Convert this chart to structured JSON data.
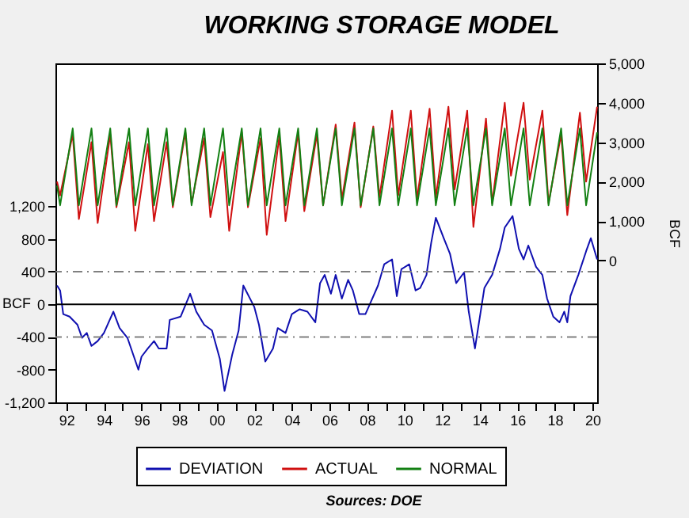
{
  "chart_data": {
    "type": "line",
    "title": "WORKING STORAGE MODEL",
    "ylabel": "BCF",
    "y2label": "BCF",
    "annotations": [
      "Sources:  DOE"
    ],
    "xlim": [
      "1991-12",
      "2020-10"
    ],
    "xticks": [
      {
        "value": "1992-07",
        "label": "92"
      },
      {
        "value": "1993-07",
        "label": null
      },
      {
        "value": "1994-07",
        "label": "94"
      },
      {
        "value": "1995-07",
        "label": null
      },
      {
        "value": "1996-07",
        "label": "96"
      },
      {
        "value": "1997-07",
        "label": null
      },
      {
        "value": "1998-07",
        "label": "98"
      },
      {
        "value": "1999-07",
        "label": null
      },
      {
        "value": "2000-07",
        "label": "00"
      },
      {
        "value": "2001-07",
        "label": null
      },
      {
        "value": "2002-07",
        "label": "02"
      },
      {
        "value": "2003-07",
        "label": null
      },
      {
        "value": "2004-07",
        "label": "04"
      },
      {
        "value": "2005-07",
        "label": null
      },
      {
        "value": "2006-07",
        "label": "06"
      },
      {
        "value": "2007-07",
        "label": null
      },
      {
        "value": "2008-07",
        "label": "08"
      },
      {
        "value": "2009-07",
        "label": null
      },
      {
        "value": "2010-07",
        "label": "10"
      },
      {
        "value": "2011-07",
        "label": null
      },
      {
        "value": "2012-07",
        "label": "12"
      },
      {
        "value": "2013-07",
        "label": null
      },
      {
        "value": "2014-07",
        "label": "14"
      },
      {
        "value": "2015-07",
        "label": null
      },
      {
        "value": "2016-07",
        "label": "16"
      },
      {
        "value": "2017-07",
        "label": null
      },
      {
        "value": "2018-07",
        "label": "18"
      },
      {
        "value": "2019-07",
        "label": null
      },
      {
        "value": "2020-07",
        "label": "20"
      }
    ],
    "ylim": [
      -1200,
      2950
    ],
    "yticks": [
      {
        "value": -1200,
        "label": "-1,200"
      },
      -800,
      -400,
      0,
      400,
      800,
      {
        "value": 1200,
        "label": "1,200"
      }
    ],
    "y2lim": [
      -3600,
      5000
    ],
    "y2ticks": [
      0,
      {
        "value": 1000,
        "label": "1,000"
      },
      {
        "value": 2000,
        "label": "2,000"
      },
      {
        "value": 3000,
        "label": "3,000"
      },
      {
        "value": 4000,
        "label": "4,000"
      },
      {
        "value": 5000,
        "label": "5,000"
      }
    ],
    "grid": false,
    "legend": "bottom",
    "marker": "none",
    "line_style": "solid",
    "ref_lines": [
      {
        "axis": "y",
        "value": 0,
        "color": "#000000",
        "line_style": "solid"
      },
      {
        "axis": "y",
        "value": 400,
        "color": "#808080",
        "line_style": "dashed"
      },
      {
        "axis": "y",
        "value": -400,
        "color": "#808080",
        "line_style": "dashed"
      }
    ],
    "series": [
      {
        "name": "DEVIATION",
        "color": "#1010b0",
        "x": [
          "1992-01",
          "1992-03",
          "1992-05",
          "1992-09",
          "1993-02",
          "1993-05",
          "1993-08",
          "1993-11",
          "1994-03",
          "1994-07",
          "1994-10",
          "1995-01",
          "1995-05",
          "1995-10",
          "1996-05",
          "1996-07",
          "1996-11",
          "1997-03",
          "1997-06",
          "1997-11",
          "1998-01",
          "1998-08",
          "1999-02",
          "1999-06",
          "1999-11",
          "2000-04",
          "2000-09",
          "2000-12",
          "2001-05",
          "2001-09",
          "2001-12",
          "2002-07",
          "2002-10",
          "2003-02",
          "2003-07",
          "2003-10",
          "2004-03",
          "2004-07",
          "2004-12",
          "2005-05",
          "2005-10",
          "2006-01",
          "2006-04",
          "2006-08",
          "2006-11",
          "2007-03",
          "2007-07",
          "2007-10",
          "2008-02",
          "2008-06",
          "2008-09",
          "2009-02",
          "2009-06",
          "2009-11",
          "2010-02",
          "2010-05",
          "2010-10",
          "2011-02",
          "2011-05",
          "2011-09",
          "2011-12",
          "2012-03",
          "2012-08",
          "2012-12",
          "2013-04",
          "2013-09",
          "2013-12",
          "2014-04",
          "2014-06",
          "2014-10",
          "2015-03",
          "2015-08",
          "2015-11",
          "2016-04",
          "2016-08",
          "2016-11",
          "2017-02",
          "2017-07",
          "2017-11",
          "2018-02",
          "2018-06",
          "2018-10",
          "2019-01",
          "2019-03",
          "2019-05",
          "2019-10",
          "2020-03",
          "2020-06",
          "2020-10"
        ],
        "values": [
          230,
          170,
          -120,
          -150,
          -250,
          -410,
          -350,
          -510,
          -450,
          -350,
          -220,
          -90,
          -290,
          -410,
          -800,
          -640,
          -540,
          -450,
          -540,
          -540,
          -190,
          -150,
          130,
          -90,
          -250,
          -320,
          -670,
          -1060,
          -610,
          -320,
          230,
          -30,
          -250,
          -700,
          -540,
          -290,
          -350,
          -120,
          -60,
          -90,
          -220,
          260,
          360,
          130,
          360,
          70,
          300,
          170,
          -120,
          -120,
          10,
          230,
          490,
          550,
          100,
          430,
          490,
          170,
          200,
          360,
          750,
          1060,
          810,
          620,
          260,
          390,
          -90,
          -540,
          -290,
          200,
          360,
          680,
          940,
          1080,
          680,
          550,
          720,
          460,
          360,
          70,
          -150,
          -220,
          -90,
          -220,
          100,
          360,
          650,
          810,
          550
        ]
      },
      {
        "name": "ACTUAL",
        "color": "#d01010",
        "axis": "y2",
        "x": [
          "1992-01",
          "1992-03",
          "1992-11",
          "1993-03",
          "1993-11",
          "1994-03",
          "1994-11",
          "1995-03",
          "1995-11",
          "1996-03",
          "1996-11",
          "1997-03",
          "1997-11",
          "1998-03",
          "1998-11",
          "1999-03",
          "1999-11",
          "2000-03",
          "2000-11",
          "2001-03",
          "2001-11",
          "2002-03",
          "2002-11",
          "2003-03",
          "2003-11",
          "2004-03",
          "2004-11",
          "2005-03",
          "2005-11",
          "2006-03",
          "2006-11",
          "2007-03",
          "2007-11",
          "2008-03",
          "2008-11",
          "2009-03",
          "2009-11",
          "2010-03",
          "2010-11",
          "2011-03",
          "2011-11",
          "2012-03",
          "2012-11",
          "2013-03",
          "2013-11",
          "2014-03",
          "2014-11",
          "2015-03",
          "2015-11",
          "2016-03",
          "2016-11",
          "2017-03",
          "2017-11",
          "2018-03",
          "2018-11",
          "2019-03",
          "2019-11",
          "2020-03",
          "2020-10"
        ],
        "values": [
          2000,
          1650,
          3200,
          1050,
          3000,
          950,
          3200,
          1350,
          3000,
          750,
          2950,
          1000,
          3000,
          1350,
          3250,
          1450,
          3100,
          1100,
          2750,
          750,
          3250,
          1350,
          3100,
          650,
          3150,
          1000,
          3250,
          1250,
          3200,
          1400,
          3450,
          1550,
          3500,
          1350,
          3400,
          1600,
          3800,
          1650,
          3800,
          1550,
          3850,
          1600,
          3900,
          1800,
          3800,
          850,
          3600,
          1450,
          4000,
          2150,
          4000,
          2050,
          3800,
          1450,
          3200,
          1150,
          3750,
          2000,
          3900
        ]
      },
      {
        "name": "NORMAL",
        "color": "#138013",
        "axis": "y2",
        "x": [
          "1992-01",
          "1992-03",
          "1992-11",
          "1993-03",
          "1993-11",
          "1994-03",
          "1994-11",
          "1995-03",
          "1995-11",
          "1996-03",
          "1996-11",
          "1997-03",
          "1997-11",
          "1998-03",
          "1998-11",
          "1999-03",
          "1999-11",
          "2000-03",
          "2000-11",
          "2001-03",
          "2001-11",
          "2002-03",
          "2002-11",
          "2003-03",
          "2003-11",
          "2004-03",
          "2004-11",
          "2005-03",
          "2005-11",
          "2006-03",
          "2006-11",
          "2007-03",
          "2007-11",
          "2008-03",
          "2008-11",
          "2009-03",
          "2009-11",
          "2010-03",
          "2010-11",
          "2011-03",
          "2011-11",
          "2012-03",
          "2012-11",
          "2013-03",
          "2013-11",
          "2014-03",
          "2014-11",
          "2015-03",
          "2015-11",
          "2016-03",
          "2016-11",
          "2017-03",
          "2017-11",
          "2018-03",
          "2018-11",
          "2019-03",
          "2019-11",
          "2020-03",
          "2020-10"
        ],
        "values": [
          1900,
          1400,
          3350,
          1400,
          3350,
          1400,
          3350,
          1400,
          3350,
          1400,
          3350,
          1400,
          3350,
          1400,
          3350,
          1400,
          3350,
          1400,
          3350,
          1400,
          3350,
          1400,
          3350,
          1400,
          3350,
          1400,
          3350,
          1400,
          3350,
          1400,
          3350,
          1400,
          3350,
          1400,
          3350,
          1400,
          3350,
          1400,
          3350,
          1400,
          3350,
          1400,
          3350,
          1400,
          3350,
          1400,
          3350,
          1400,
          3350,
          1400,
          3350,
          1400,
          3350,
          1400,
          3350,
          1400,
          3350,
          1400,
          3250
        ]
      }
    ]
  }
}
